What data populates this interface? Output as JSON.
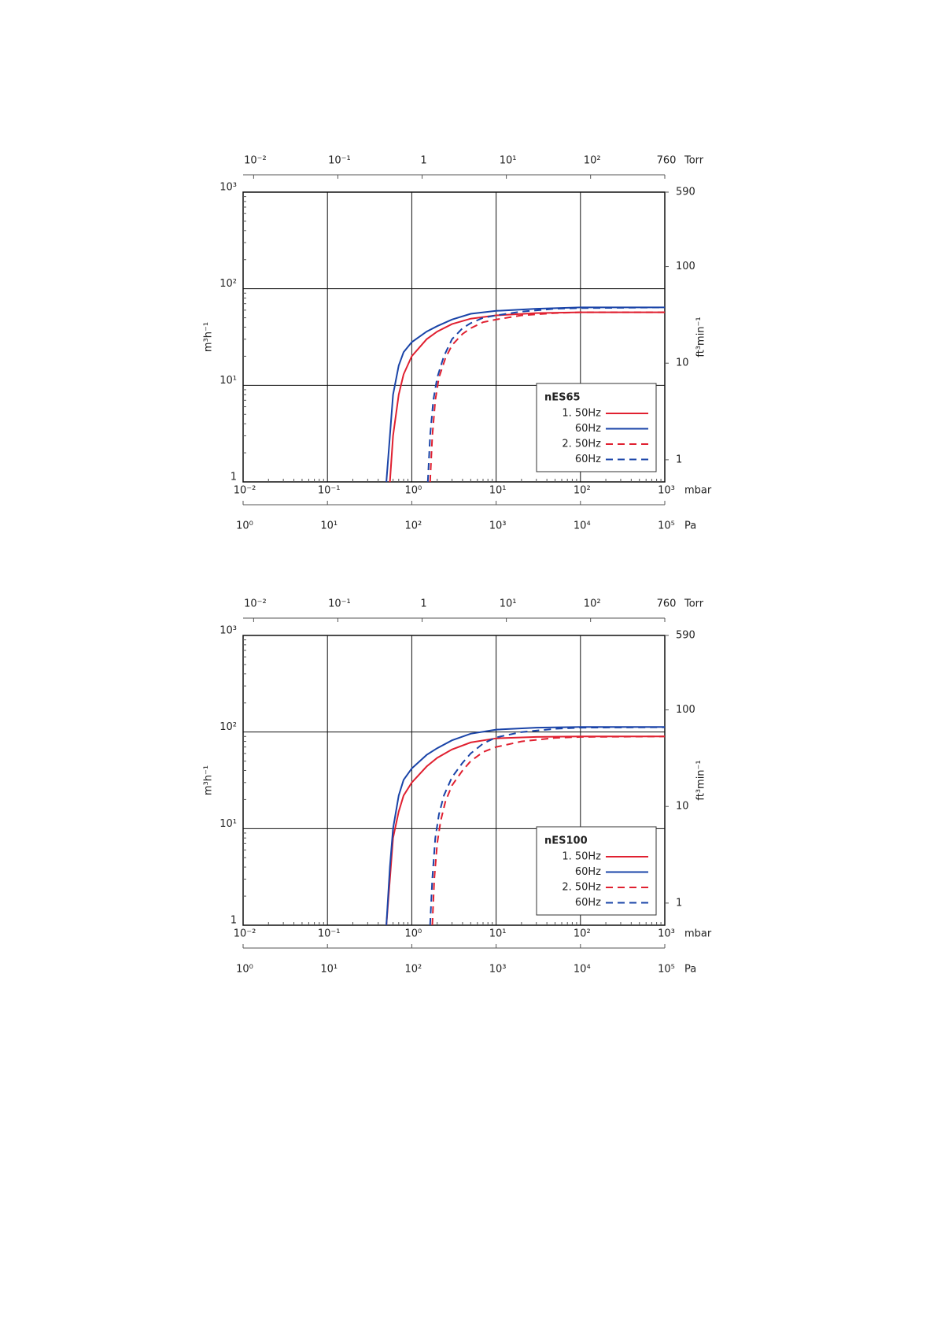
{
  "chart_data": [
    {
      "type": "line",
      "xscale": "log",
      "yscale": "log",
      "grid": true,
      "legend": "lower right",
      "legend_title": "nES65",
      "xlabel": "mbar",
      "xlim": [
        0.01,
        1000
      ],
      "xticks": [
        {
          "value": 0.01,
          "label": "10⁻²"
        },
        {
          "value": 0.1,
          "label": "10⁻¹"
        },
        {
          "value": 1,
          "label": "10⁰"
        },
        {
          "value": 10,
          "label": "10¹"
        },
        {
          "value": 100,
          "label": "10²"
        },
        {
          "value": 1000,
          "label": "10³"
        }
      ],
      "x2label": "Torr",
      "x2lim": [
        0.0075,
        760
      ],
      "x2ticks": [
        {
          "value": 0.01,
          "label": "10⁻²"
        },
        {
          "value": 0.1,
          "label": "10⁻¹"
        },
        1,
        {
          "value": 10,
          "label": "10¹"
        },
        {
          "value": 100,
          "label": "10²"
        },
        760
      ],
      "x3label": "Pa",
      "x3lim": [
        1,
        100000
      ],
      "x3ticks": [
        {
          "value": 1,
          "label": "10⁰"
        },
        {
          "value": 10,
          "label": "10¹"
        },
        {
          "value": 100,
          "label": "10²"
        },
        {
          "value": 1000,
          "label": "10³"
        },
        {
          "value": 10000,
          "label": "10⁴"
        },
        {
          "value": 100000,
          "label": "10⁵"
        }
      ],
      "ylabel": "m³h⁻¹",
      "ylim": [
        1,
        1000
      ],
      "yticks": [
        1,
        {
          "value": 10,
          "label": "10¹"
        },
        {
          "value": 100,
          "label": "10²"
        },
        {
          "value": 1000,
          "label": "10³"
        }
      ],
      "y2label": "ft³min⁻¹",
      "y2lim": [
        0.59,
        590
      ],
      "y2ticks": [
        1,
        10,
        100,
        590
      ],
      "series": [
        {
          "name": "1. 50Hz",
          "color": "#e02030",
          "style": "solid",
          "x": [
            0.55,
            0.6,
            0.7,
            0.8,
            1,
            1.5,
            2,
            3,
            5,
            10,
            30,
            100,
            1000
          ],
          "values": [
            1,
            3,
            8,
            13,
            20,
            30,
            36,
            43,
            49,
            53,
            56,
            57,
            57
          ]
        },
        {
          "name": "60Hz",
          "color": "#1a44a8",
          "style": "solid",
          "x": [
            0.5,
            0.55,
            0.6,
            0.7,
            0.8,
            1,
            1.5,
            2,
            3,
            5,
            10,
            30,
            100,
            1000
          ],
          "values": [
            1,
            3,
            8,
            16,
            22,
            28,
            36,
            41,
            48,
            55,
            59,
            62,
            64,
            64
          ]
        },
        {
          "name": "2. 50Hz",
          "color": "#e02030",
          "style": "dashed",
          "x": [
            1.65,
            1.75,
            1.9,
            2.1,
            2.5,
            3,
            4,
            5,
            7,
            10,
            20,
            50,
            100,
            1000
          ],
          "values": [
            1,
            3,
            7,
            12,
            19,
            26,
            34,
            39,
            45,
            48,
            53,
            56,
            57,
            57
          ]
        },
        {
          "name": "60Hz",
          "color": "#1a44a8",
          "style": "dashed",
          "x": [
            1.55,
            1.65,
            1.8,
            2,
            2.4,
            3,
            4,
            5,
            7,
            10,
            20,
            50,
            100,
            1000
          ],
          "values": [
            1,
            3,
            7,
            12,
            20,
            30,
            39,
            44,
            50,
            53,
            58,
            62,
            63,
            64
          ]
        }
      ]
    },
    {
      "type": "line",
      "xscale": "log",
      "yscale": "log",
      "grid": true,
      "legend": "lower right",
      "legend_title": "nES100",
      "xlabel": "mbar",
      "xlim": [
        0.01,
        1000
      ],
      "xticks": [
        {
          "value": 0.01,
          "label": "10⁻²"
        },
        {
          "value": 0.1,
          "label": "10⁻¹"
        },
        {
          "value": 1,
          "label": "10⁰"
        },
        {
          "value": 10,
          "label": "10¹"
        },
        {
          "value": 100,
          "label": "10²"
        },
        {
          "value": 1000,
          "label": "10³"
        }
      ],
      "x2label": "Torr",
      "x2lim": [
        0.0075,
        760
      ],
      "x2ticks": [
        {
          "value": 0.01,
          "label": "10⁻²"
        },
        {
          "value": 0.1,
          "label": "10⁻¹"
        },
        1,
        {
          "value": 10,
          "label": "10¹"
        },
        {
          "value": 100,
          "label": "10²"
        },
        760
      ],
      "x3label": "Pa",
      "x3lim": [
        1,
        100000
      ],
      "x3ticks": [
        {
          "value": 1,
          "label": "10⁰"
        },
        {
          "value": 10,
          "label": "10¹"
        },
        {
          "value": 100,
          "label": "10²"
        },
        {
          "value": 1000,
          "label": "10³"
        },
        {
          "value": 10000,
          "label": "10⁴"
        },
        {
          "value": 100000,
          "label": "10⁵"
        }
      ],
      "ylabel": "m³h⁻¹",
      "ylim": [
        1,
        1000
      ],
      "yticks": [
        1,
        {
          "value": 10,
          "label": "10¹"
        },
        {
          "value": 100,
          "label": "10²"
        },
        {
          "value": 1000,
          "label": "10³"
        }
      ],
      "y2label": "ft³min⁻¹",
      "y2lim": [
        0.59,
        590
      ],
      "y2ticks": [
        1,
        10,
        100,
        590
      ],
      "series": [
        {
          "name": "1. 50Hz",
          "color": "#e02030",
          "style": "solid",
          "x": [
            0.5,
            0.55,
            0.6,
            0.7,
            0.8,
            1,
            1.5,
            2,
            3,
            5,
            10,
            30,
            100,
            1000
          ],
          "values": [
            1,
            3,
            8,
            15,
            22,
            30,
            44,
            54,
            66,
            78,
            86,
            89,
            90,
            90
          ]
        },
        {
          "name": "60Hz",
          "color": "#1a44a8",
          "style": "solid",
          "x": [
            0.5,
            0.55,
            0.6,
            0.7,
            0.8,
            1,
            1.5,
            2,
            3,
            5,
            10,
            30,
            100,
            1000
          ],
          "values": [
            1,
            4,
            10,
            22,
            32,
            42,
            58,
            68,
            82,
            96,
            106,
            111,
            113,
            113
          ]
        },
        {
          "name": "2. 50Hz",
          "color": "#e02030",
          "style": "dashed",
          "x": [
            1.75,
            1.85,
            2,
            2.2,
            2.5,
            3,
            4,
            5,
            7,
            10,
            20,
            50,
            100,
            1000
          ],
          "values": [
            1,
            3,
            7,
            12,
            19,
            28,
            40,
            50,
            62,
            70,
            80,
            87,
            89,
            90
          ]
        },
        {
          "name": "60Hz",
          "color": "#1a44a8",
          "style": "dashed",
          "x": [
            1.65,
            1.75,
            1.9,
            2.1,
            2.4,
            3,
            4,
            5,
            7,
            10,
            20,
            50,
            100,
            1000
          ],
          "values": [
            1,
            3,
            8,
            14,
            22,
            34,
            48,
            60,
            76,
            88,
            100,
            108,
            111,
            112
          ]
        }
      ]
    }
  ]
}
